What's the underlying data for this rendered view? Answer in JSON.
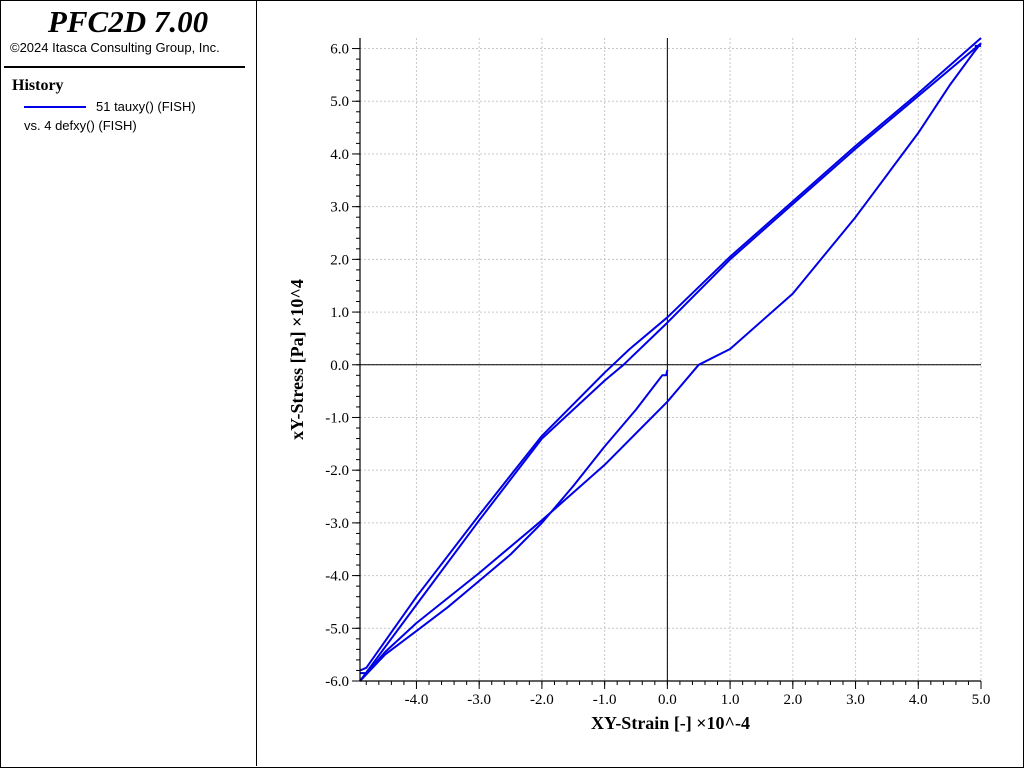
{
  "sidebar": {
    "title": "PFC2D 7.00",
    "copyright": "©2024 Itasca Consulting Group, Inc.",
    "history_heading": "History",
    "legend_series": "51 tauxy() (FISH)",
    "legend_vs": "vs. 4 defxy() (FISH)"
  },
  "colors": {
    "series": "#0000e6",
    "grid": "#c8c8c8",
    "axis": "#000000"
  },
  "chart_data": {
    "type": "line",
    "xlabel": "XY-Strain [-] ×10^-4",
    "ylabel": "xY-Stress [Pa] ×10^4",
    "xlim": [
      -4.9,
      5.0
    ],
    "ylim": [
      -6.0,
      6.2
    ],
    "grid": true,
    "x_ticks": [
      -4.0,
      -3.0,
      -2.0,
      -1.0,
      0.0,
      1.0,
      2.0,
      3.0,
      4.0,
      5.0
    ],
    "x_tick_labels": [
      "-4.0",
      "-3.0",
      "-2.0",
      "-1.0",
      "0.0",
      "1.0",
      "2.0",
      "3.0",
      "4.0",
      "5.0"
    ],
    "y_ticks": [
      -6.0,
      -5.0,
      -4.0,
      -3.0,
      -2.0,
      -1.0,
      0.0,
      1.0,
      2.0,
      3.0,
      4.0,
      5.0,
      6.0
    ],
    "y_tick_labels": [
      "-6.0",
      "-5.0",
      "-4.0",
      "-3.0",
      "-2.0",
      "-1.0",
      "0.0",
      "1.0",
      "2.0",
      "3.0",
      "4.0",
      "5.0",
      "6.0"
    ],
    "series": [
      {
        "legend": "51 tauxy() (FISH) vs. 4 defxy() (FISH)",
        "segments": [
          {
            "x": [
              0.0,
              -0.02,
              -0.08,
              -0.5,
              -1.0,
              -1.5,
              -2.0,
              -2.5,
              -3.0,
              -3.5,
              -4.0,
              -4.5,
              -4.9
            ],
            "y": [
              -0.1,
              -0.2,
              -0.2,
              -0.85,
              -1.55,
              -2.3,
              -3.0,
              -3.6,
              -4.1,
              -4.6,
              -5.05,
              -5.5,
              -6.0
            ]
          },
          {
            "x": [
              -4.9,
              -4.0,
              -3.0,
              -2.0,
              -1.0,
              -0.7,
              0.0,
              1.0,
              2.0,
              3.0,
              4.0,
              5.0
            ],
            "y": [
              -6.0,
              -4.55,
              -2.95,
              -1.4,
              -0.3,
              0.0,
              0.8,
              2.0,
              3.05,
              4.1,
              5.1,
              6.1
            ]
          },
          {
            "x": [
              5.0,
              4.9,
              4.5,
              4.0,
              3.0,
              2.0,
              1.0,
              0.5,
              0.0,
              -1.0,
              -2.0,
              -3.0,
              -4.0,
              -4.5,
              -4.9
            ],
            "y": [
              6.1,
              5.95,
              5.3,
              4.4,
              2.8,
              1.35,
              0.3,
              0.0,
              -0.7,
              -1.9,
              -2.95,
              -3.95,
              -4.9,
              -5.45,
              -6.0
            ]
          },
          {
            "x": [
              -4.9,
              -4.8,
              -4.0,
              -3.0,
              -2.0,
              -1.0,
              -0.6,
              0.0,
              1.0,
              2.0,
              3.0,
              4.0,
              5.0
            ],
            "y": [
              -5.8,
              -5.75,
              -4.4,
              -2.85,
              -1.35,
              -0.15,
              0.3,
              0.9,
              2.05,
              3.1,
              4.15,
              5.15,
              6.2
            ]
          },
          {
            "x": [
              4.9,
              5.0
            ],
            "y": [
              6.05,
              6.05
            ]
          },
          {
            "x": [
              -4.9,
              -4.8
            ],
            "y": [
              -5.85,
              -5.85
            ]
          }
        ]
      }
    ]
  }
}
